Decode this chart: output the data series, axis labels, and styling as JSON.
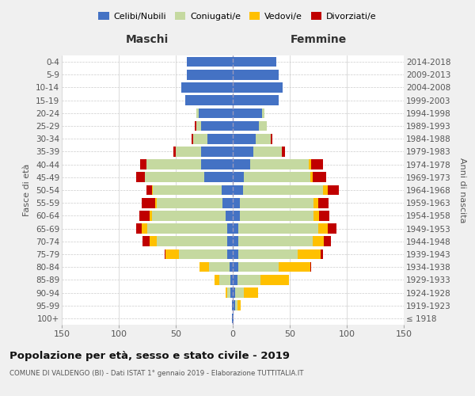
{
  "age_groups": [
    "100+",
    "95-99",
    "90-94",
    "85-89",
    "80-84",
    "75-79",
    "70-74",
    "65-69",
    "60-64",
    "55-59",
    "50-54",
    "45-49",
    "40-44",
    "35-39",
    "30-34",
    "25-29",
    "20-24",
    "15-19",
    "10-14",
    "5-9",
    "0-4"
  ],
  "birth_years": [
    "≤ 1918",
    "1919-1923",
    "1924-1928",
    "1929-1933",
    "1934-1938",
    "1939-1943",
    "1944-1948",
    "1949-1953",
    "1954-1958",
    "1959-1963",
    "1964-1968",
    "1969-1973",
    "1974-1978",
    "1979-1983",
    "1984-1988",
    "1989-1993",
    "1994-1998",
    "1999-2003",
    "2004-2008",
    "2009-2013",
    "2014-2018"
  ],
  "male_celibe": [
    1,
    1,
    2,
    2,
    3,
    5,
    5,
    5,
    6,
    9,
    10,
    25,
    28,
    28,
    22,
    28,
    30,
    42,
    45,
    40,
    40
  ],
  "male_coniugato": [
    0,
    0,
    3,
    10,
    18,
    42,
    62,
    70,
    65,
    58,
    60,
    52,
    48,
    22,
    13,
    4,
    2,
    0,
    0,
    0,
    0
  ],
  "male_vedovo": [
    0,
    0,
    1,
    4,
    8,
    12,
    6,
    5,
    2,
    1,
    1,
    0,
    0,
    0,
    0,
    0,
    0,
    0,
    0,
    0,
    0
  ],
  "male_divorziato": [
    0,
    0,
    0,
    0,
    0,
    1,
    6,
    5,
    9,
    12,
    5,
    8,
    5,
    2,
    1,
    1,
    0,
    0,
    0,
    0,
    0
  ],
  "female_nubile": [
    1,
    2,
    2,
    4,
    5,
    5,
    5,
    5,
    6,
    6,
    9,
    10,
    15,
    18,
    20,
    23,
    26,
    40,
    44,
    40,
    38
  ],
  "female_coniugata": [
    0,
    2,
    8,
    20,
    35,
    52,
    65,
    70,
    65,
    65,
    70,
    58,
    52,
    25,
    13,
    7,
    2,
    0,
    0,
    0,
    0
  ],
  "female_vedova": [
    0,
    3,
    12,
    25,
    28,
    20,
    10,
    8,
    5,
    4,
    4,
    2,
    2,
    0,
    0,
    0,
    0,
    0,
    0,
    0,
    0
  ],
  "female_divorziata": [
    0,
    0,
    0,
    0,
    1,
    2,
    6,
    8,
    9,
    9,
    10,
    12,
    10,
    3,
    2,
    0,
    0,
    0,
    0,
    0,
    0
  ],
  "colors": {
    "celibe": "#4472c4",
    "coniugato": "#c5d9a0",
    "vedovo": "#ffc000",
    "divorziato": "#c00000"
  },
  "title": "Popolazione per età, sesso e stato civile - 2019",
  "subtitle": "COMUNE DI VALDENGO (BI) - Dati ISTAT 1° gennaio 2019 - Elaborazione TUTTITALIA.IT",
  "xlabel_left": "Maschi",
  "xlabel_right": "Femmine",
  "ylabel_left": "Fasce di età",
  "ylabel_right": "Anni di nascita",
  "legend_labels": [
    "Celibi/Nubili",
    "Coniugati/e",
    "Vedovi/e",
    "Divorziati/e"
  ],
  "bg_color": "#f0f0f0",
  "plot_bg_color": "#ffffff"
}
